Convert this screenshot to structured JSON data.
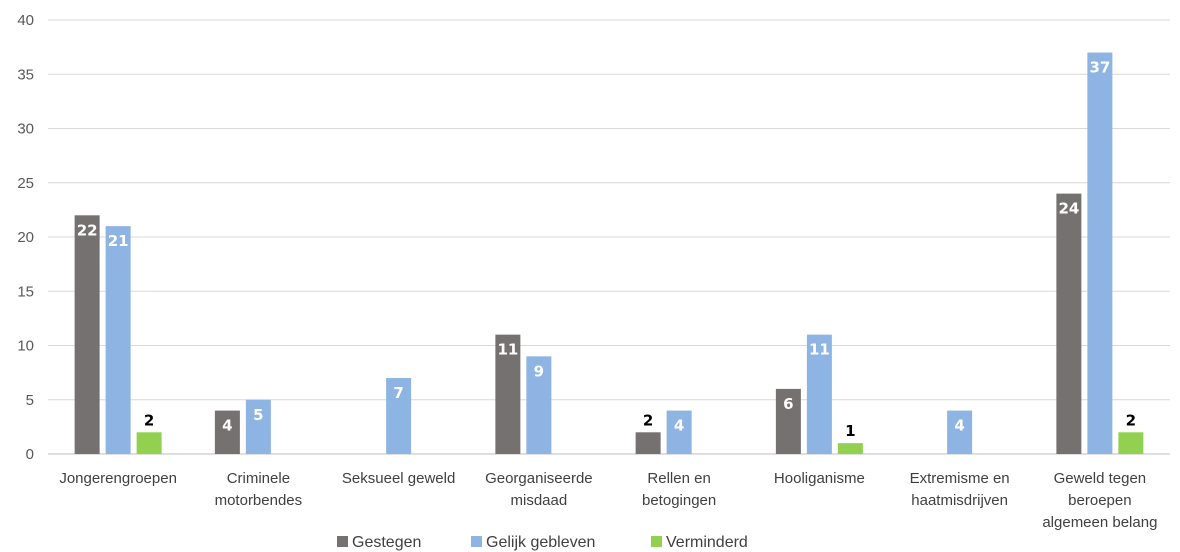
{
  "chart_data": {
    "type": "bar",
    "title": "",
    "xlabel": "",
    "ylabel": "",
    "ylim": [
      0,
      40
    ],
    "yticks": [
      0,
      5,
      10,
      15,
      20,
      25,
      30,
      35,
      40
    ],
    "grid": true,
    "legend_position": "bottom",
    "categories": [
      [
        "Jongerengroepen"
      ],
      [
        "Criminele",
        "motorbendes"
      ],
      [
        "Seksueel geweld"
      ],
      [
        "Georganiseerde",
        "misdaad"
      ],
      [
        "Rellen en",
        "betogingen"
      ],
      [
        "Hooliganisme"
      ],
      [
        "Extremisme en",
        "haatmisdrijven"
      ],
      [
        "Geweld tegen",
        "beroepen",
        "algemeen belang"
      ]
    ],
    "series": [
      {
        "name": "Gestegen",
        "color": "#767171",
        "label_color": "#ffffff",
        "values": [
          22,
          4,
          null,
          11,
          2,
          6,
          null,
          24
        ],
        "label_outside": [
          false,
          false,
          false,
          false,
          true,
          false,
          false,
          false
        ]
      },
      {
        "name": "Gelijk gebleven",
        "color": "#8eb4e3",
        "label_color": "#ffffff",
        "values": [
          21,
          5,
          7,
          9,
          4,
          11,
          4,
          37
        ],
        "label_outside": [
          false,
          false,
          false,
          false,
          false,
          false,
          false,
          false
        ]
      },
      {
        "name": "Verminderd",
        "color": "#92d050",
        "label_color": "#000000",
        "values": [
          2,
          null,
          null,
          null,
          null,
          1,
          null,
          2
        ],
        "label_outside": [
          true,
          false,
          false,
          false,
          false,
          true,
          false,
          true
        ]
      }
    ]
  }
}
